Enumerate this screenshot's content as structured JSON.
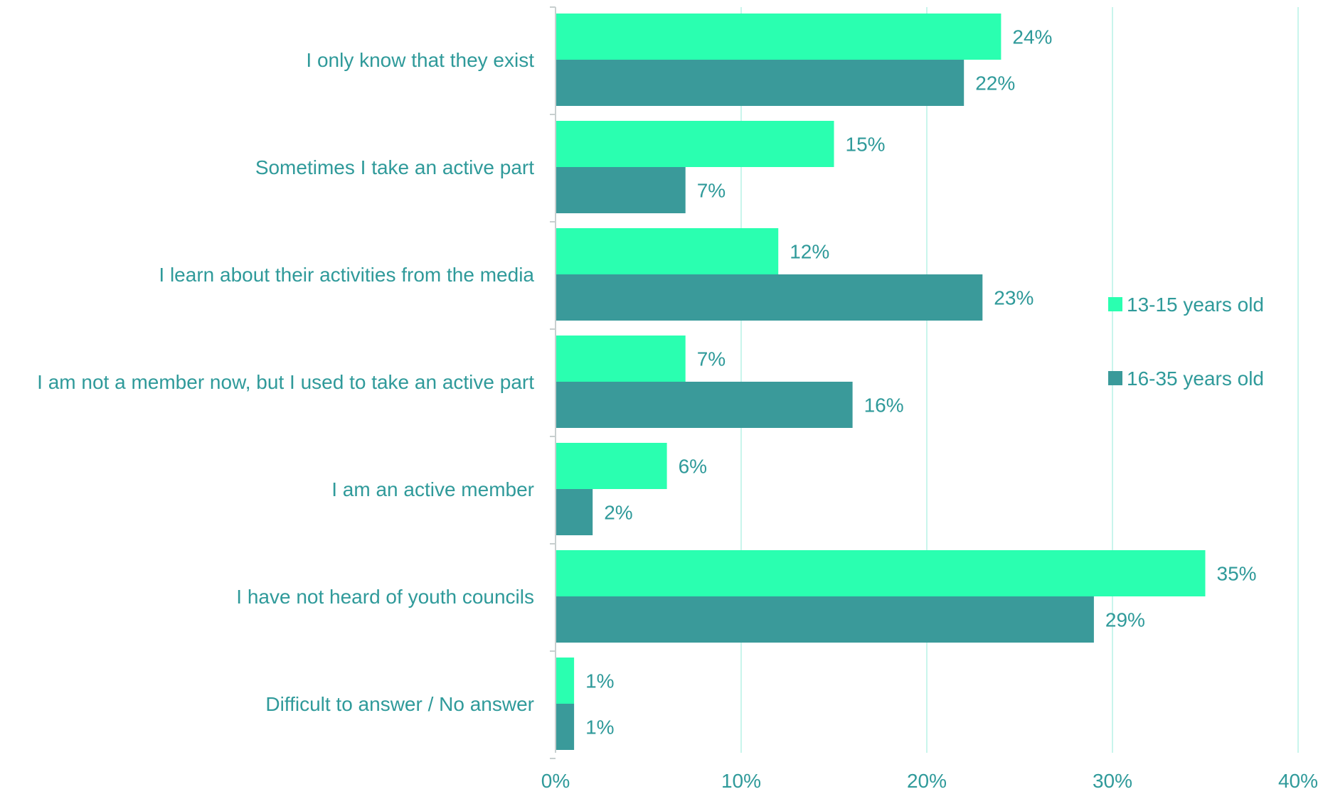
{
  "chart_data": {
    "type": "bar",
    "orientation": "horizontal",
    "title": "",
    "xlabel": "",
    "ylabel": "",
    "categories": [
      "I only know that they exist",
      "Sometimes I take an active part",
      "I learn about their activities from the media",
      "I am not a member now, but I used to take an active part",
      "I am an active member",
      "I have not heard of youth councils",
      "Difficult to answer / No answer"
    ],
    "series": [
      {
        "name": "13-15 years old",
        "color": "#2affb0",
        "values": [
          24,
          15,
          12,
          7,
          6,
          35,
          1
        ],
        "labels": [
          "24%",
          "15%",
          "12%",
          "7%",
          "6%",
          "35%",
          "1%"
        ]
      },
      {
        "name": "16-35 years old",
        "color": "#3a9a9a",
        "values": [
          22,
          7,
          23,
          16,
          2,
          29,
          1
        ],
        "labels": [
          "22%",
          "7%",
          "23%",
          "16%",
          "2%",
          "29%",
          "1%"
        ]
      }
    ],
    "xlim": [
      0,
      40
    ],
    "xticks": [
      0,
      10,
      20,
      30,
      40
    ],
    "xtick_labels": [
      "0%",
      "10%",
      "20%",
      "30%",
      "40%"
    ],
    "grid": "vertical",
    "legend": "right",
    "gridline_color": "#c9f5ec",
    "axis_color": "#c8cfcf",
    "text_color": "#2f9a9a"
  }
}
